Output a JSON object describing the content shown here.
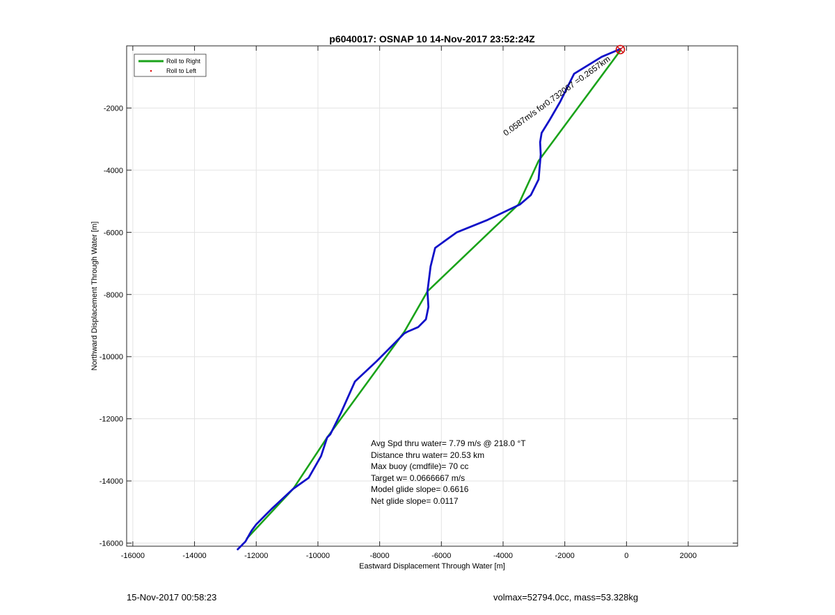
{
  "chart_data": {
    "type": "line",
    "title": "p6040017: OSNAP 10 14-Nov-2017 23:52:24Z",
    "xlabel": "Eastward Displacement Through Water [m]",
    "ylabel": "Northward Displacement Through Water [m]",
    "xlim": [
      -16200,
      3600
    ],
    "ylim": [
      -16100,
      0
    ],
    "xticks": [
      -16000,
      -14000,
      -12000,
      -10000,
      -8000,
      -6000,
      -4000,
      -2000,
      0,
      2000
    ],
    "yticks": [
      -16000,
      -14000,
      -12000,
      -10000,
      -8000,
      -6000,
      -4000,
      -2000
    ],
    "xtick_labels": [
      "-16000",
      "-14000",
      "-12000",
      "-10000",
      "-8000",
      "-6000",
      "-4000",
      "-2000",
      "0",
      "2000"
    ],
    "ytick_labels": [
      "-16000",
      "-14000",
      "-12000",
      "-10000",
      "-8000",
      "-6000",
      "-4000",
      "-2000"
    ],
    "grid": true,
    "legend_position": "top-left",
    "legend": [
      {
        "label": "Roll to Right",
        "color": "#1aa31a",
        "marker": "line"
      },
      {
        "label": "Roll to Left",
        "color": "#e01010",
        "marker": "dot"
      }
    ],
    "series": [
      {
        "name": "Roll to Right",
        "color": "#1aa31a",
        "x": [
          -200,
          -2850,
          -3500,
          -6450,
          -7200,
          -9700,
          -10800,
          -12300
        ],
        "y": [
          -150,
          -3700,
          -5100,
          -7900,
          -9200,
          -12600,
          -14250,
          -15850
        ]
      },
      {
        "color": "#1010c8",
        "x": [
          -200,
          -800,
          -1700,
          -2150,
          -2500,
          -2750,
          -2800,
          -2780,
          -2850,
          -3100,
          -3450,
          -4500,
          -5500,
          -6200,
          -6350,
          -6450,
          -6420,
          -6500,
          -6750,
          -7100,
          -7200,
          -8100,
          -8800,
          -9250,
          -9600,
          -9700,
          -9900,
          -10300,
          -10800,
          -11500,
          -12000,
          -12150,
          -12350,
          -12600
        ],
        "y": [
          -100,
          -350,
          -900,
          -1800,
          -2400,
          -2800,
          -3100,
          -3500,
          -4300,
          -4800,
          -5100,
          -5600,
          -6000,
          -6500,
          -7100,
          -7900,
          -8400,
          -8800,
          -9050,
          -9200,
          -9250,
          -10150,
          -10800,
          -11800,
          -12500,
          -12600,
          -13200,
          -13900,
          -14250,
          -14900,
          -15400,
          -15600,
          -15950,
          -16200
        ]
      }
    ],
    "marker_point": {
      "x": -200,
      "y": -120,
      "color": "#d01010"
    },
    "rotated_annotation": "0.0587m/s for0.732067 =0.2657km",
    "annotations": [
      "Avg Spd thru water=  7.79 m/s @ 218.0 °T",
      "Distance thru water= 20.53 km",
      "Max buoy (cmdfile)= 70 cc",
      "Target w= 0.0666667 m/s",
      "Model glide slope= 0.6616",
      "Net glide slope= 0.0117"
    ]
  },
  "footer": {
    "left": "15-Nov-2017 00:58:23",
    "right": "volmax=52794.0cc, mass=53.328kg"
  }
}
